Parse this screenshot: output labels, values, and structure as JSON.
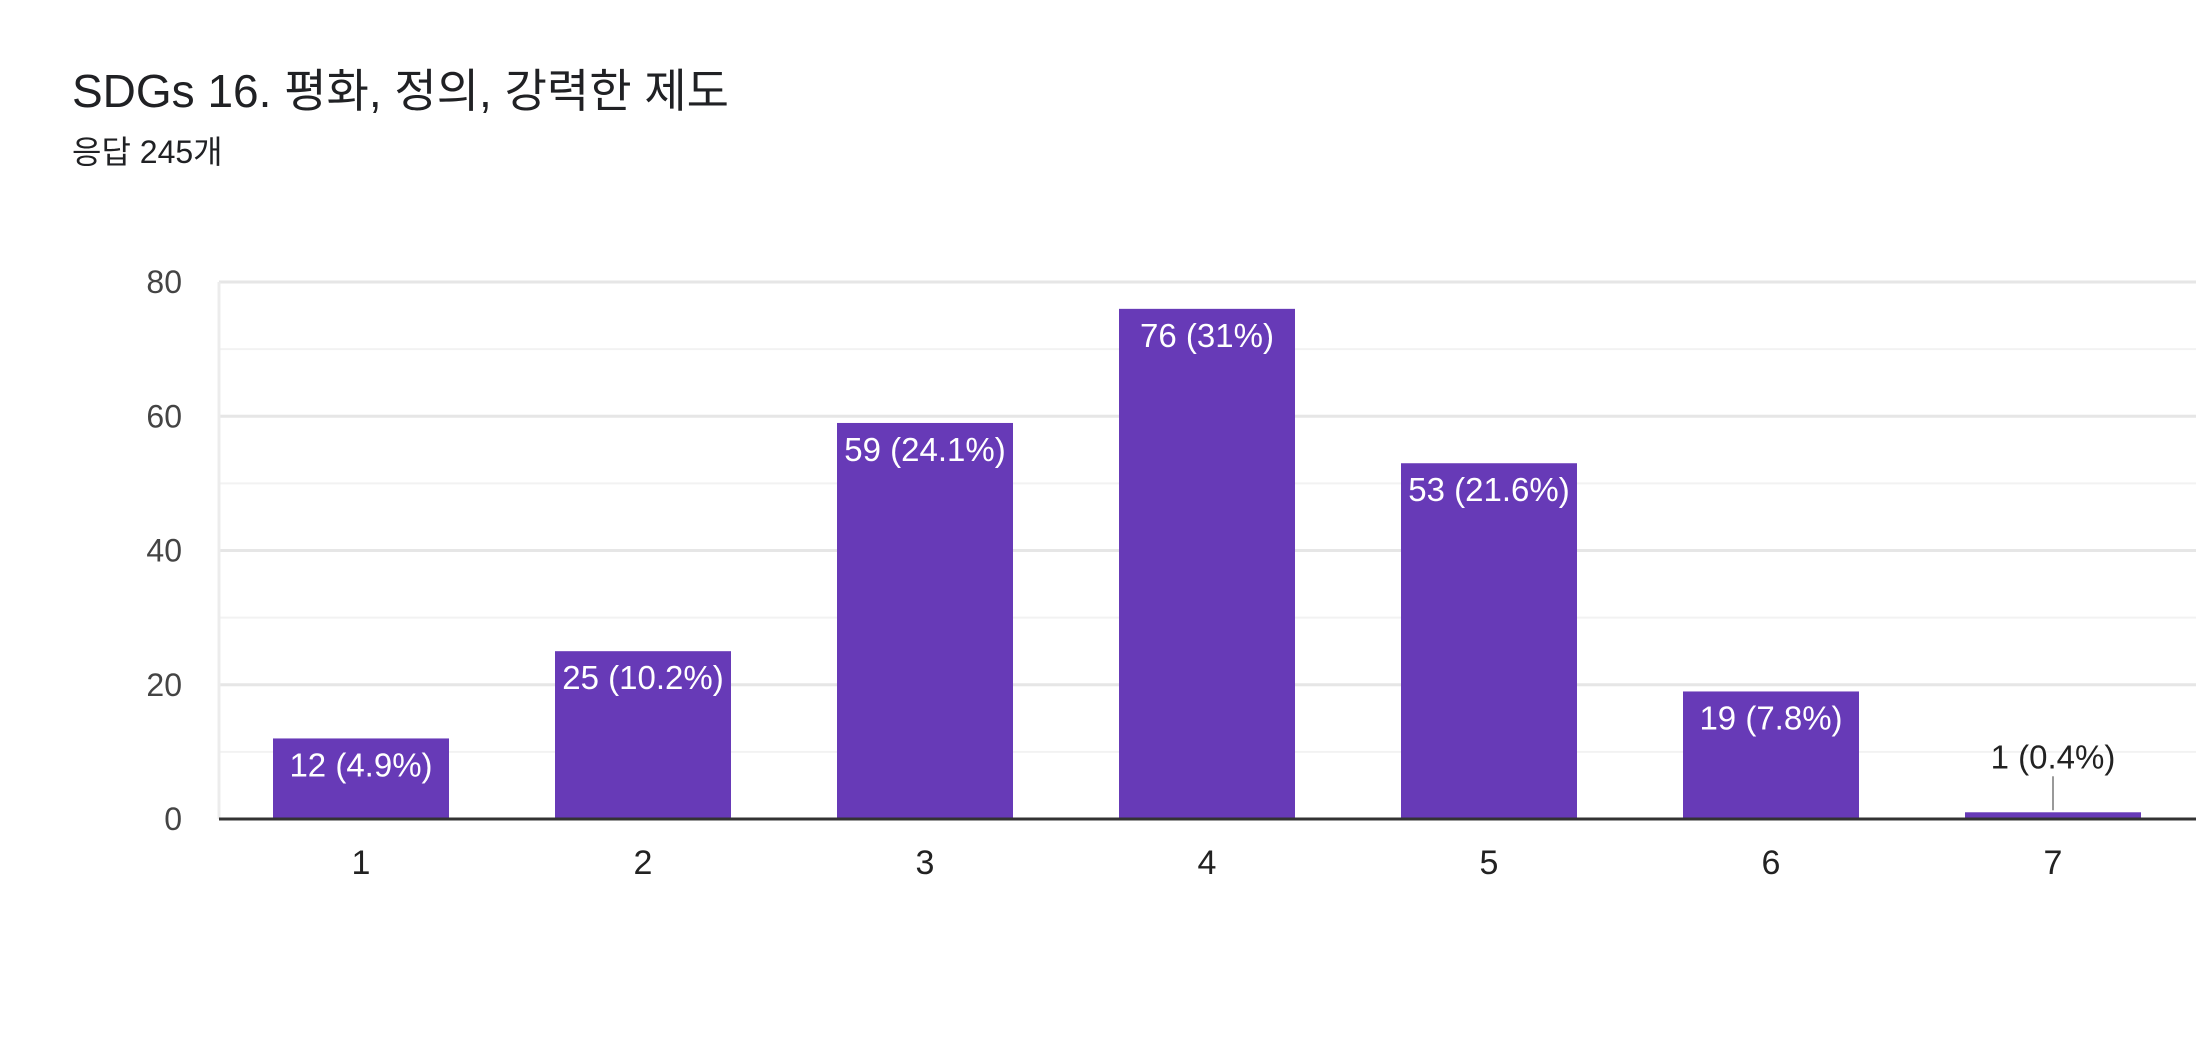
{
  "header": {
    "title": "SDGs 16. 평화, 정의, 강력한 제도",
    "subtitle": "응답 245개"
  },
  "chart_data": {
    "type": "bar",
    "title": "SDGs 16. 평화, 정의, 강력한 제도",
    "subtitle": "응답 245개",
    "categories": [
      "1",
      "2",
      "3",
      "4",
      "5",
      "6",
      "7"
    ],
    "values": [
      12,
      25,
      59,
      76,
      53,
      19,
      1
    ],
    "labels": [
      "12 (4.9%)",
      "25 (10.2%)",
      "59 (24.1%)",
      "76 (31%)",
      "53 (21.6%)",
      "19 (7.8%)",
      "1 (0.4%)"
    ],
    "xlabel": "",
    "ylabel": "",
    "ylim": [
      0,
      80
    ],
    "yticks": [
      "0",
      "20",
      "40",
      "60",
      "80"
    ],
    "grid": true,
    "legend": "none",
    "colors": {
      "bar": "#673ab7",
      "grid": "#e8e8e8",
      "baseline": "#333333",
      "label_inside": "#ffffff",
      "label_outside": "#222222"
    }
  }
}
